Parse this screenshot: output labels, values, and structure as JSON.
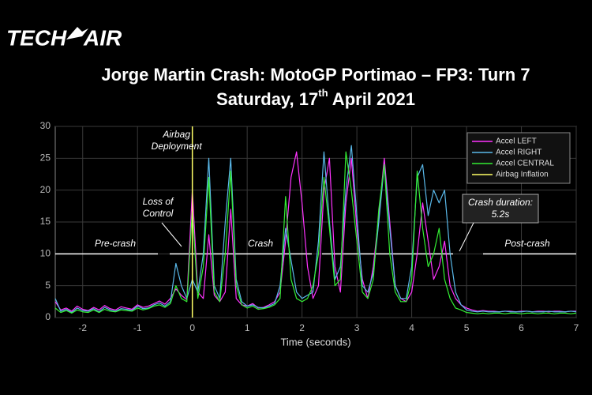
{
  "logo": {
    "left": "TECH",
    "right": "AIR"
  },
  "chart_data": {
    "type": "line",
    "title": "Jorge Martin Crash: MotoGP Portimao – FP3: Turn 7",
    "subtitle": {
      "before": "Saturday, 17",
      "sup": "th",
      "after": " April 2021"
    },
    "x_label": "Time (seconds)",
    "xlim": [
      -2.5,
      7
    ],
    "ylim": [
      0,
      30
    ],
    "xticks": [
      -2,
      -1,
      0,
      1,
      2,
      3,
      4,
      5,
      6,
      7
    ],
    "yticks": [
      0,
      5,
      10,
      15,
      20,
      25,
      30
    ],
    "grid": true,
    "legend": "top-right",
    "phase_line": 10,
    "annotations": {
      "airbag": [
        "Airbag",
        "Deployment"
      ],
      "loss": [
        "Loss of",
        "Control"
      ],
      "pre": "Pre-crash",
      "crash": "Crash",
      "post": "Post-crash",
      "duration": [
        "Crash duration:",
        "5.2s"
      ]
    },
    "x": [
      -2.5,
      -2.4,
      -2.3,
      -2.2,
      -2.1,
      -2.0,
      -1.9,
      -1.8,
      -1.7,
      -1.6,
      -1.5,
      -1.4,
      -1.3,
      -1.2,
      -1.1,
      -1.0,
      -0.9,
      -0.8,
      -0.7,
      -0.6,
      -0.5,
      -0.4,
      -0.3,
      -0.2,
      -0.1,
      0.0,
      0.1,
      0.2,
      0.3,
      0.4,
      0.5,
      0.6,
      0.7,
      0.8,
      0.9,
      1.0,
      1.1,
      1.2,
      1.3,
      1.4,
      1.5,
      1.6,
      1.7,
      1.8,
      1.9,
      2.0,
      2.1,
      2.2,
      2.3,
      2.4,
      2.5,
      2.6,
      2.7,
      2.8,
      2.9,
      3.0,
      3.1,
      3.2,
      3.3,
      3.4,
      3.5,
      3.6,
      3.7,
      3.8,
      3.9,
      4.0,
      4.1,
      4.2,
      4.3,
      4.4,
      4.5,
      4.6,
      4.7,
      4.8,
      4.9,
      5.0,
      5.1,
      5.2,
      5.3,
      5.4,
      5.5,
      5.6,
      5.7,
      5.8,
      5.9,
      6.0,
      6.1,
      6.2,
      6.3,
      6.4,
      6.5,
      6.6,
      6.7,
      6.8,
      6.9,
      7.0
    ],
    "series": [
      {
        "name": "Accel LEFT",
        "color": "#ff33ff",
        "values": [
          2.5,
          1.2,
          1.5,
          1.0,
          1.8,
          1.3,
          1.1,
          1.6,
          1.2,
          1.9,
          1.4,
          1.2,
          1.7,
          1.5,
          1.3,
          2.0,
          1.6,
          1.8,
          2.2,
          2.6,
          2.1,
          3.0,
          4.5,
          3.5,
          2.8,
          20,
          4.0,
          3.0,
          13,
          3.5,
          2.5,
          4.0,
          17,
          3.0,
          2.0,
          1.8,
          2.2,
          1.5,
          1.6,
          2.0,
          2.5,
          4.0,
          12,
          22,
          26,
          18,
          8,
          3.0,
          5.0,
          20,
          25,
          8,
          4,
          18,
          25,
          14,
          6,
          3,
          8,
          16,
          25,
          15,
          5,
          3,
          2.5,
          4,
          10,
          18,
          12,
          6,
          8,
          12,
          5,
          3,
          2,
          1.5,
          1.2,
          1.0,
          1.1,
          1.0,
          1.0,
          0.9,
          1.0,
          1.0,
          0.9,
          1.0,
          1.0,
          0.9,
          1.0,
          1.0,
          0.9,
          1.0,
          1.0,
          0.9,
          1.0,
          1.0
        ]
      },
      {
        "name": "Accel RIGHT",
        "color": "#5ab9ea",
        "values": [
          3.0,
          1.0,
          1.3,
          0.8,
          1.5,
          1.1,
          1.0,
          1.4,
          0.9,
          1.6,
          1.2,
          1.0,
          1.4,
          1.3,
          1.1,
          1.8,
          1.4,
          1.5,
          2.0,
          2.3,
          1.8,
          2.5,
          8.5,
          5,
          3,
          6,
          4,
          10,
          25,
          5,
          3,
          15,
          25,
          6,
          2.5,
          1.8,
          2.0,
          1.6,
          1.5,
          1.8,
          2.2,
          5,
          14,
          9,
          4,
          3,
          3.5,
          4,
          12,
          26,
          15,
          6,
          8,
          20,
          27,
          16,
          5,
          4,
          7,
          15,
          24,
          14,
          5,
          3,
          3,
          8,
          22,
          24,
          16,
          20,
          18,
          20,
          10,
          4,
          2,
          1.2,
          1.0,
          0.9,
          1.0,
          0.9,
          0.9,
          0.9,
          1.0,
          0.9,
          0.9,
          0.9,
          1.0,
          0.9,
          0.9,
          0.9,
          1.0,
          0.9,
          0.9,
          0.9,
          1.0,
          0.9
        ]
      },
      {
        "name": "Accel CENTRAL",
        "color": "#33ee33",
        "values": [
          1.5,
          0.8,
          1.1,
          0.7,
          1.2,
          0.9,
          0.8,
          1.2,
          0.8,
          1.3,
          1.0,
          0.9,
          1.2,
          1.1,
          1.0,
          1.5,
          1.2,
          1.4,
          1.8,
          2.0,
          1.6,
          2.2,
          5,
          3,
          2.5,
          17,
          3,
          8,
          22,
          4,
          2.5,
          10,
          23,
          5,
          2,
          1.5,
          1.8,
          1.3,
          1.4,
          1.6,
          2,
          3,
          19,
          6,
          3,
          2.5,
          3,
          5,
          10,
          22,
          14,
          5,
          6,
          26,
          20,
          12,
          4,
          3,
          6,
          17,
          24,
          10,
          4,
          2.5,
          2.5,
          6,
          23,
          14,
          8,
          10,
          14,
          6,
          3,
          1.5,
          1.2,
          0.8,
          0.7,
          0.6,
          0.7,
          0.6,
          0.7,
          0.7,
          0.6,
          0.7,
          0.7,
          0.6,
          0.7,
          0.7,
          0.6,
          0.7,
          0.7,
          0.6,
          0.7,
          0.7,
          0.6,
          0.7
        ]
      },
      {
        "name": "Airbag Inflation",
        "color": "#ffff66",
        "x": [
          0,
          0
        ],
        "values": [
          0,
          30
        ]
      }
    ]
  }
}
